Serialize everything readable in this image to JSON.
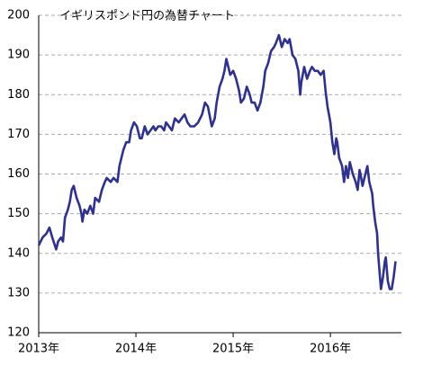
{
  "chart_data": {
    "type": "line",
    "title": "イギリスポンド円の為替チャート",
    "x": [
      2013.0,
      2013.04,
      2013.08,
      2013.11,
      2013.14,
      2013.18,
      2013.2,
      2013.23,
      2013.25,
      2013.27,
      2013.3,
      2013.32,
      2013.34,
      2013.36,
      2013.39,
      2013.42,
      2013.44,
      2013.45,
      2013.47,
      2013.5,
      2013.53,
      2013.56,
      2013.58,
      2013.62,
      2013.65,
      2013.68,
      2013.7,
      2013.74,
      2013.77,
      2013.81,
      2013.83,
      2013.87,
      2013.9,
      2013.93,
      2013.95,
      2013.98,
      2014.01,
      2014.04,
      2014.06,
      2014.09,
      2014.12,
      2014.15,
      2014.18,
      2014.2,
      2014.23,
      2014.26,
      2014.29,
      2014.31,
      2014.34,
      2014.37,
      2014.4,
      2014.44,
      2014.47,
      2014.5,
      2014.53,
      2014.56,
      2014.6,
      2014.64,
      2014.68,
      2014.71,
      2014.74,
      2014.78,
      2014.81,
      2014.83,
      2014.86,
      2014.89,
      2014.91,
      2014.93,
      2014.94,
      2014.97,
      2015.0,
      2015.03,
      2015.06,
      2015.08,
      2015.11,
      2015.14,
      2015.17,
      2015.19,
      2015.22,
      2015.25,
      2015.28,
      2015.31,
      2015.33,
      2015.36,
      2015.39,
      2015.42,
      2015.44,
      2015.47,
      2015.5,
      2015.53,
      2015.56,
      2015.58,
      2015.61,
      2015.64,
      2015.67,
      2015.69,
      2015.7,
      2015.73,
      2015.76,
      2015.79,
      2015.81,
      2015.84,
      2015.87,
      2015.9,
      2015.93,
      2015.95,
      2015.97,
      2016.0,
      2016.02,
      2016.04,
      2016.06,
      2016.07,
      2016.09,
      2016.12,
      2016.14,
      2016.16,
      2016.18,
      2016.2,
      2016.23,
      2016.26,
      2016.28,
      2016.3,
      2016.31,
      2016.33,
      2016.35,
      2016.38,
      2016.4,
      2016.43,
      2016.44,
      2016.46,
      2016.48,
      2016.49,
      2016.51,
      2016.52,
      2016.54,
      2016.56,
      2016.57,
      2016.59,
      2016.61,
      2016.63,
      2016.65,
      2016.67
    ],
    "series": [
      {
        "color": "#2e3192",
        "values": [
          142,
          144,
          145,
          146.5,
          144,
          141,
          143,
          144,
          143,
          149,
          151,
          153,
          156,
          157,
          154,
          152,
          150,
          148,
          151,
          150,
          152,
          150,
          154,
          153,
          156,
          158,
          159,
          158,
          159,
          158,
          162,
          166,
          168,
          168,
          171,
          173,
          172,
          169,
          169,
          172,
          170,
          171,
          172,
          171,
          172,
          172,
          171,
          173,
          172,
          171,
          174,
          173,
          174,
          175,
          173,
          172,
          172,
          173,
          175,
          178,
          177,
          172,
          174,
          178,
          182,
          184,
          186,
          189,
          188,
          185,
          186,
          184,
          181,
          178,
          179,
          182,
          180,
          178,
          178,
          176,
          178,
          182,
          186,
          188,
          191,
          192,
          193,
          195,
          192,
          194,
          193,
          194,
          190,
          189,
          186,
          180,
          183,
          187,
          184,
          186,
          187,
          186,
          186,
          185,
          186,
          181,
          177,
          173,
          168,
          165,
          169,
          168,
          164,
          162,
          158,
          162,
          159,
          163,
          160,
          158,
          156,
          161,
          160,
          157,
          159,
          162,
          158,
          155,
          152,
          148,
          145,
          140,
          134,
          131,
          134,
          138,
          139,
          133,
          131,
          131,
          134,
          138
        ]
      }
    ],
    "xlim": [
      2013,
      2016.73
    ],
    "xticks": [
      {
        "value": 2013,
        "label": "2013年"
      },
      {
        "value": 2014,
        "label": "2014年"
      },
      {
        "value": 2015,
        "label": "2015年"
      },
      {
        "value": 2016,
        "label": "2016年"
      }
    ],
    "ylim": [
      120,
      200
    ],
    "yticks": [
      120,
      130,
      140,
      150,
      160,
      170,
      180,
      190,
      200
    ],
    "grid": true
  }
}
